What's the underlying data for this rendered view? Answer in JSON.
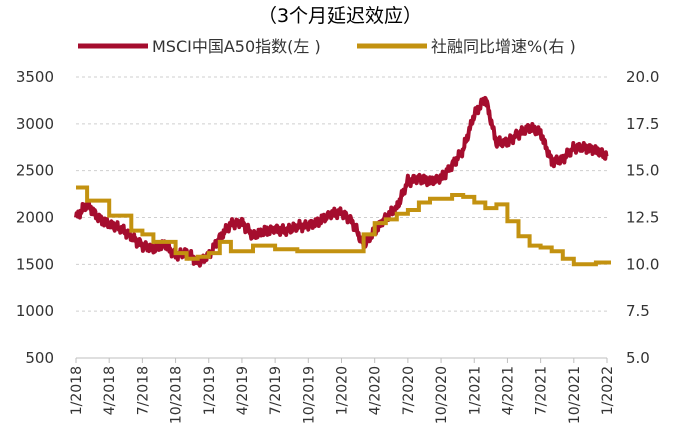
{
  "chart_data": {
    "type": "line",
    "title": "（3个月延迟效应）",
    "x_ticks": [
      "1/2018",
      "4/2018",
      "7/2018",
      "10/2018",
      "1/2019",
      "4/2019",
      "7/2019",
      "10/2019",
      "1/2020",
      "4/2020",
      "7/2020",
      "10/2020",
      "1/2021",
      "4/2021",
      "7/2021",
      "10/2021",
      "1/2022"
    ],
    "y_left": {
      "ylim": [
        500,
        3500
      ],
      "ticks": [
        "500",
        "1000",
        "1500",
        "2000",
        "2500",
        "3000",
        "3500"
      ]
    },
    "y_right": {
      "ylim": [
        5.0,
        20.0
      ],
      "ticks": [
        "5.0",
        "7.5",
        "10.0",
        "12.5",
        "15.0",
        "17.5",
        "20.0"
      ]
    },
    "grid": true,
    "legend_position": "top",
    "series": [
      {
        "name": "MSCI中国A50指数(左 )",
        "axis": "left",
        "color": "#a50d2e",
        "x": [
          "2018-01",
          "2018-02",
          "2018-03",
          "2018-04",
          "2018-05",
          "2018-06",
          "2018-07",
          "2018-08",
          "2018-09",
          "2018-10",
          "2018-11",
          "2018-12",
          "2019-01",
          "2019-02",
          "2019-03",
          "2019-04",
          "2019-05",
          "2019-06",
          "2019-07",
          "2019-08",
          "2019-09",
          "2019-10",
          "2019-11",
          "2019-12",
          "2020-01",
          "2020-02",
          "2020-03",
          "2020-04",
          "2020-05",
          "2020-06",
          "2020-07",
          "2020-08",
          "2020-09",
          "2020-10",
          "2020-11",
          "2020-12",
          "2021-01",
          "2021-02",
          "2021-03",
          "2021-04",
          "2021-05",
          "2021-06",
          "2021-07",
          "2021-08",
          "2021-09",
          "2021-10",
          "2021-11",
          "2021-12",
          "2022-01"
        ],
        "values": [
          2000,
          2140,
          2000,
          1930,
          1880,
          1800,
          1700,
          1660,
          1720,
          1600,
          1620,
          1520,
          1600,
          1780,
          1930,
          1950,
          1800,
          1850,
          1880,
          1860,
          1900,
          1920,
          1960,
          2030,
          2060,
          1950,
          1700,
          1860,
          2000,
          2100,
          2390,
          2420,
          2380,
          2420,
          2560,
          2720,
          3100,
          3280,
          2800,
          2800,
          2900,
          2960,
          2900,
          2600,
          2620,
          2740,
          2750,
          2720,
          2650
        ],
        "band": true
      },
      {
        "name": "社融同比增速%(右 )",
        "axis": "right",
        "color": "#c39210",
        "x": [
          "2018-01",
          "2018-02",
          "2018-03",
          "2018-04",
          "2018-05",
          "2018-06",
          "2018-07",
          "2018-08",
          "2018-09",
          "2018-10",
          "2018-11",
          "2018-12",
          "2019-01",
          "2019-02",
          "2019-03",
          "2019-04",
          "2019-05",
          "2019-06",
          "2019-07",
          "2019-08",
          "2019-09",
          "2019-10",
          "2019-11",
          "2019-12",
          "2020-01",
          "2020-02",
          "2020-03",
          "2020-04",
          "2020-05",
          "2020-06",
          "2020-07",
          "2020-08",
          "2020-09",
          "2020-10",
          "2020-11",
          "2020-12",
          "2021-01",
          "2021-02",
          "2021-03",
          "2021-04",
          "2021-05",
          "2021-06",
          "2021-07",
          "2021-08",
          "2021-09",
          "2021-10",
          "2021-11",
          "2021-12",
          "2022-01"
        ],
        "values": [
          14.1,
          13.4,
          13.4,
          12.6,
          12.6,
          11.8,
          11.6,
          11.2,
          11.2,
          10.6,
          10.3,
          10.4,
          10.6,
          11.2,
          10.7,
          10.7,
          11.0,
          11.0,
          10.8,
          10.8,
          10.7,
          10.7,
          10.7,
          10.7,
          10.7,
          10.7,
          11.6,
          12.2,
          12.4,
          12.7,
          12.9,
          13.3,
          13.5,
          13.5,
          13.7,
          13.6,
          13.3,
          13.0,
          13.2,
          12.3,
          11.5,
          11.0,
          10.9,
          10.7,
          10.3,
          10.0,
          10.0,
          10.1,
          10.1
        ]
      }
    ]
  }
}
